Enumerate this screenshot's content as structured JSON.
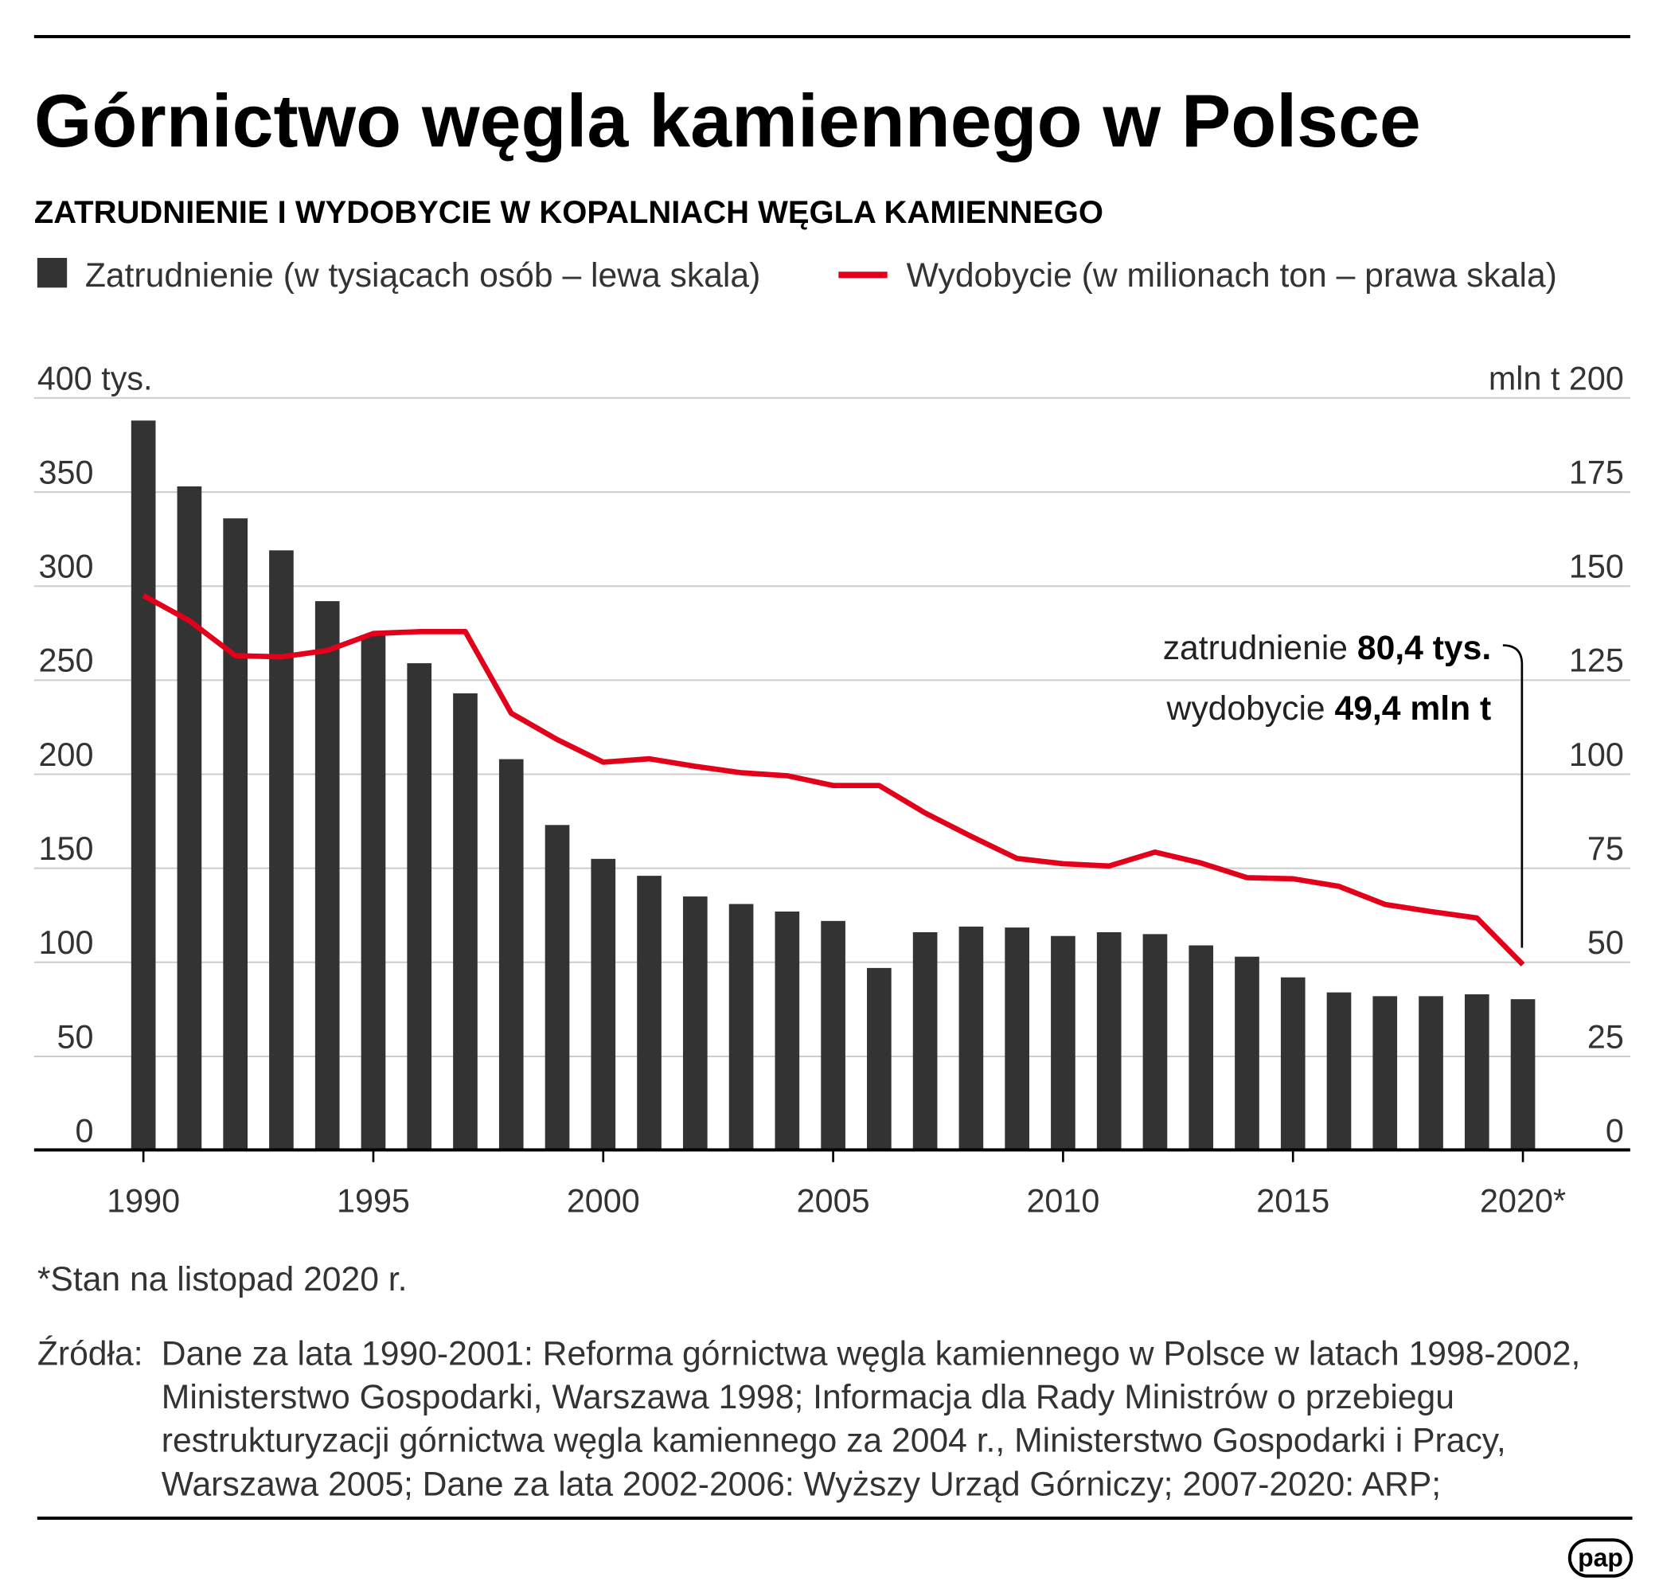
{
  "title": "Górnictwo węgla kamiennego w Polsce",
  "subtitle": "ZATRUDNIENIE I WYDOBYCIE W KOPALNIACH WĘGLA KAMIENNEGO",
  "colors": {
    "bars": "#333333",
    "line": "#e3001b",
    "grid": "#cccccc"
  },
  "chart_data": {
    "type": "bar+line",
    "title": "ZATRUDNIENIE I WYDOBYCIE W KOPALNIACH WĘGLA KAMIENNEGO",
    "x": [
      1990,
      1991,
      1992,
      1993,
      1994,
      1995,
      1996,
      1997,
      1998,
      1999,
      2000,
      2001,
      2002,
      2003,
      2004,
      2005,
      2006,
      2007,
      2008,
      2009,
      2010,
      2011,
      2012,
      2013,
      2014,
      2015,
      2016,
      2017,
      2018,
      2019,
      2020
    ],
    "x_tick_labels": [
      "1990",
      "1995",
      "2000",
      "2005",
      "2010",
      "2015",
      "2020*"
    ],
    "x_tick_values": [
      1990,
      1995,
      2000,
      2005,
      2010,
      2015,
      2020
    ],
    "series": [
      {
        "name": "Zatrudnienie (w tysiącach osób – lewa skala)",
        "type": "bar",
        "axis": "left",
        "values": [
          388,
          353,
          336,
          319,
          292,
          274,
          259,
          243,
          208,
          173,
          155,
          146,
          135,
          131,
          127,
          122,
          97,
          116,
          119,
          118.5,
          114,
          116,
          115,
          109,
          103,
          92,
          84,
          82,
          82,
          83,
          80.4
        ]
      },
      {
        "name": "Wydobycie (w milionach ton – prawa skala)",
        "type": "line",
        "axis": "right",
        "values": [
          147.5,
          140.8,
          131.5,
          131.2,
          132.9,
          137.4,
          137.9,
          137.9,
          116.2,
          109.2,
          103.2,
          104.1,
          102.1,
          100.4,
          99.6,
          97.0,
          97.0,
          89.7,
          83.5,
          77.6,
          76.2,
          75.6,
          79.3,
          76.4,
          72.5,
          72.2,
          70.2,
          65.4,
          63.5,
          61.8,
          49.4
        ]
      }
    ],
    "left_axis": {
      "ylim": [
        0,
        400
      ],
      "ticks": [
        "0",
        "50",
        "100",
        "150",
        "200",
        "250",
        "300",
        "350",
        "400 tys."
      ],
      "tick_values": [
        0,
        50,
        100,
        150,
        200,
        250,
        300,
        350,
        400
      ]
    },
    "right_axis": {
      "ylim": [
        0,
        200
      ],
      "ticks": [
        "0",
        "25",
        "50",
        "75",
        "100",
        "125",
        "150",
        "175",
        "mln t 200"
      ],
      "tick_values": [
        0,
        25,
        50,
        75,
        100,
        125,
        150,
        175,
        200
      ]
    },
    "grid": true,
    "legend_placement": "top",
    "annotation": {
      "line1_label": "zatrudnienie ",
      "line1_value": "80,4 tys.",
      "line2_label": "wydobycie ",
      "line2_value": "49,4 mln t"
    }
  },
  "footnote": "*Stan na listopad 2020 r.",
  "sources_label": "Źródła:",
  "sources_lines": [
    "Dane za lata 1990-2001: Reforma górnictwa węgla kamiennego w Polsce w latach 1998-2002,",
    "Ministerstwo Gospodarki, Warszawa 1998; Informacja dla Rady Ministrów o przebiegu",
    "restrukturyzacji górnictwa węgla kamiennego za 2004 r., Ministerstwo Gospodarki i Pracy,",
    "Warszawa 2005; Dane za lata 2002-2006: Wyższy Urząd Górniczy; 2007-2020: ARP;"
  ],
  "logo": "pap"
}
